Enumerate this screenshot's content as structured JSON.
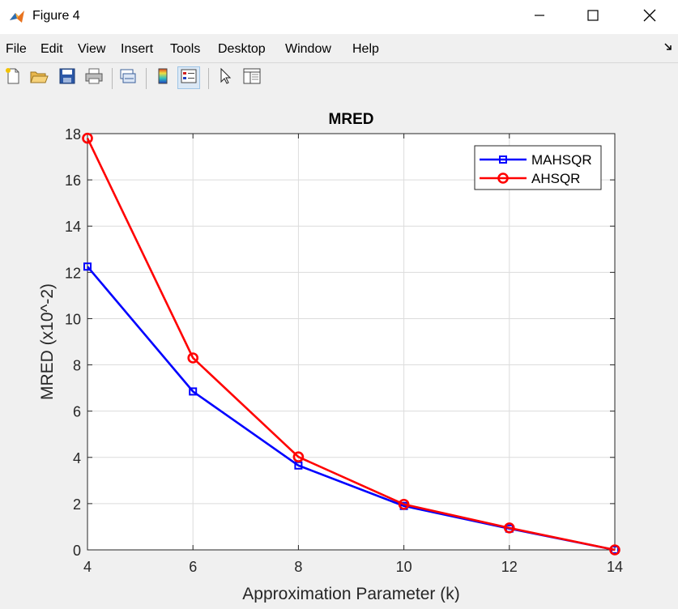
{
  "window": {
    "title": "Figure 4",
    "minimize_icon": "minimize-icon",
    "maximize_icon": "maximize-icon",
    "close_icon": "close-icon"
  },
  "menu": {
    "items": [
      "File",
      "Edit",
      "View",
      "Insert",
      "Tools",
      "Desktop",
      "Window",
      "Help"
    ],
    "overflow_icon": "dock-arrow-icon"
  },
  "toolbar": {
    "buttons": [
      {
        "icon": "new-figure-icon"
      },
      {
        "icon": "open-file-icon"
      },
      {
        "icon": "save-icon"
      },
      {
        "icon": "print-icon"
      },
      {
        "icon": "link-plot-icon"
      },
      {
        "icon": "colorbar-icon"
      },
      {
        "icon": "legend-icon",
        "active": true
      },
      {
        "icon": "edit-plot-pointer-icon"
      },
      {
        "icon": "property-inspector-icon"
      }
    ]
  },
  "colors": {
    "series1": "#0000ff",
    "series2": "#ff0000",
    "grid": "#dcdcdc",
    "axes_bg": "#ffffff",
    "window_bg": "#f0f0f0"
  },
  "chart_data": {
    "type": "line",
    "title": "MRED",
    "xlabel": "Approximation Parameter (k)",
    "ylabel": "MRED (x10^-2)",
    "x": [
      4,
      6,
      8,
      10,
      12,
      14
    ],
    "xlim": [
      4,
      14
    ],
    "ylim": [
      0,
      18
    ],
    "xticks": [
      4,
      6,
      8,
      10,
      12,
      14
    ],
    "yticks": [
      0,
      2,
      4,
      6,
      8,
      10,
      12,
      14,
      16,
      18
    ],
    "grid": true,
    "legend_position": "top-right",
    "series": [
      {
        "name": "MAHSQR",
        "marker": "square",
        "color": "#0000ff",
        "values": [
          12.25,
          6.85,
          3.65,
          1.9,
          0.92,
          0.0
        ]
      },
      {
        "name": "AHSQR",
        "marker": "circle",
        "color": "#ff0000",
        "values": [
          17.8,
          8.3,
          4.02,
          1.97,
          0.95,
          0.0
        ]
      }
    ]
  }
}
